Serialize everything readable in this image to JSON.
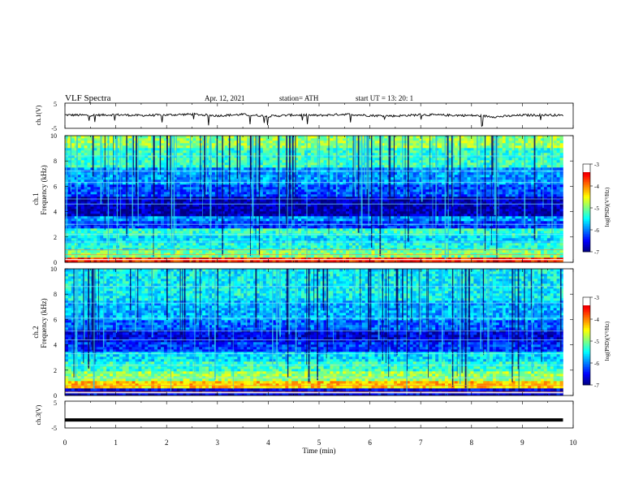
{
  "header": {
    "title": "VLF  Spectra",
    "date": "Apr. 12, 2021",
    "station": "station= ATH",
    "start": "start  UT  =    13: 20: 1"
  },
  "chart_data": [
    {
      "type": "line",
      "name": "ch1-waveform",
      "ylabel": "ch.1(V)",
      "ylim": [
        -5,
        5
      ],
      "yticks": [
        "5",
        "-5"
      ],
      "baseline": 0,
      "x": [
        0,
        0.5,
        1,
        1.5,
        2,
        2.5,
        3,
        3.5,
        4,
        4.5,
        5,
        5.5,
        6,
        6.5,
        7,
        7.5,
        8,
        8.5,
        9,
        9.5,
        9.8
      ],
      "values": [
        0.3,
        0.2,
        0.4,
        0.1,
        0.3,
        0.6,
        0.0,
        0.5,
        -0.2,
        0.3,
        0.1,
        0.6,
        0.1,
        -0.1,
        0.4,
        0.2,
        0.1,
        -0.4,
        0.2,
        0.3,
        0.1
      ]
    },
    {
      "type": "heatmap",
      "name": "ch1-spectrogram",
      "ylabel": "Frequency  (kHz)",
      "channel_label": "ch.1",
      "xlim": [
        0,
        10
      ],
      "ylim": [
        0,
        10
      ],
      "yticks": [
        "0",
        "2",
        "4",
        "6",
        "8",
        "10"
      ],
      "data_end_min": 9.8,
      "colorbar": {
        "label": "log(PSD)(V²/Hz)",
        "ticks": [
          "-3",
          "-4",
          "-5",
          "-6",
          "-7"
        ],
        "range": [
          -7,
          -3
        ]
      },
      "bands": [
        {
          "from": 0,
          "to": 0.4,
          "level": -3.6
        },
        {
          "from": 0.4,
          "to": 0.9,
          "level": -5.0
        },
        {
          "from": 0.9,
          "to": 1.5,
          "level": -5.4
        },
        {
          "from": 1.5,
          "to": 2.2,
          "level": -5.6
        },
        {
          "from": 2.2,
          "to": 2.6,
          "level": -5.3
        },
        {
          "from": 2.6,
          "to": 3.2,
          "level": -6.3
        },
        {
          "from": 3.2,
          "to": 3.6,
          "level": -5.9
        },
        {
          "from": 3.6,
          "to": 5.2,
          "level": -6.8
        },
        {
          "from": 5.2,
          "to": 6.2,
          "level": -6.2
        },
        {
          "from": 6.2,
          "to": 7.5,
          "level": -5.9
        },
        {
          "from": 7.5,
          "to": 9.0,
          "level": -5.3
        },
        {
          "from": 9.0,
          "to": 10.0,
          "level": -4.9
        }
      ]
    },
    {
      "type": "heatmap",
      "name": "ch2-spectrogram",
      "ylabel": "Frequency  (kHz)",
      "channel_label": "ch.2",
      "xlim": [
        0,
        10
      ],
      "ylim": [
        0,
        10
      ],
      "yticks": [
        "0",
        "2",
        "4",
        "6",
        "8",
        "10"
      ],
      "data_end_min": 9.8,
      "colorbar": {
        "label": "log(PSD)(V²/Hz)",
        "ticks": [
          "-3",
          "-4",
          "-5",
          "-6",
          "-7"
        ],
        "range": [
          -7,
          -3
        ]
      },
      "bands": [
        {
          "from": 0,
          "to": 0.5,
          "level": -6.6
        },
        {
          "from": 0.5,
          "to": 1.2,
          "level": -4.3
        },
        {
          "from": 1.2,
          "to": 2.0,
          "level": -4.9
        },
        {
          "from": 2.0,
          "to": 2.6,
          "level": -5.3
        },
        {
          "from": 2.6,
          "to": 3.4,
          "level": -5.6
        },
        {
          "from": 3.4,
          "to": 4.2,
          "level": -6.3
        },
        {
          "from": 4.2,
          "to": 5.2,
          "level": -6.6
        },
        {
          "from": 5.2,
          "to": 6.0,
          "level": -6.1
        },
        {
          "from": 6.0,
          "to": 7.5,
          "level": -5.8
        },
        {
          "from": 7.5,
          "to": 10.0,
          "level": -5.5
        }
      ]
    },
    {
      "type": "line",
      "name": "ch3-waveform",
      "ylabel": "ch.3(V)",
      "ylim": [
        -5,
        5
      ],
      "yticks": [
        "5",
        "-5"
      ],
      "x": [
        0,
        9.8
      ],
      "values": [
        -2.0,
        -2.0
      ],
      "xlabel": "Time  (min)",
      "xlim": [
        0,
        10
      ],
      "xticks": [
        "0",
        "1",
        "2",
        "3",
        "4",
        "5",
        "6",
        "7",
        "8",
        "9",
        "10"
      ]
    }
  ]
}
